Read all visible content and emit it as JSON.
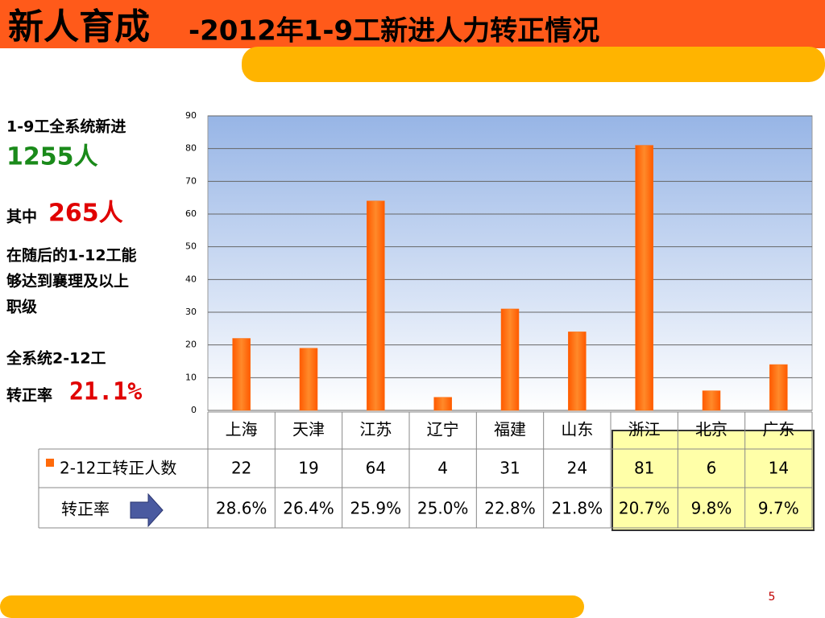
{
  "header": {
    "title_main": "新人育成",
    "title_sub": "-2012年1-9工新进人力转正情况"
  },
  "sidebar": {
    "line1": "1-9工全系统新进",
    "total": "1255人",
    "intro": "其中",
    "count": "265人",
    "desc": [
      "在随后的1-12工能",
      "够达到襄理及以上",
      "职级"
    ],
    "rate_intro": "全系统2-12工",
    "rate_label": "转正率",
    "rate": "21.1%"
  },
  "chart_data": {
    "type": "bar",
    "categories": [
      "上海",
      "天津",
      "江苏",
      "辽宁",
      "福建",
      "山东",
      "浙江",
      "北京",
      "广东"
    ],
    "series": [
      {
        "name": "2-12工转正人数",
        "color": "#ff6a0a",
        "values": [
          22,
          19,
          64,
          4,
          31,
          24,
          81,
          6,
          14
        ]
      }
    ],
    "ylim": [
      0,
      90
    ],
    "yticks": [
      0,
      10,
      20,
      30,
      40,
      50,
      60,
      70,
      80,
      90
    ],
    "grid": true
  },
  "table": {
    "rate_row_label": "转正率",
    "rates": [
      "28.6%",
      "26.4%",
      "25.9%",
      "25.0%",
      "22.8%",
      "21.8%",
      "20.7%",
      "9.8%",
      "9.7%"
    ]
  },
  "page_number": "5"
}
